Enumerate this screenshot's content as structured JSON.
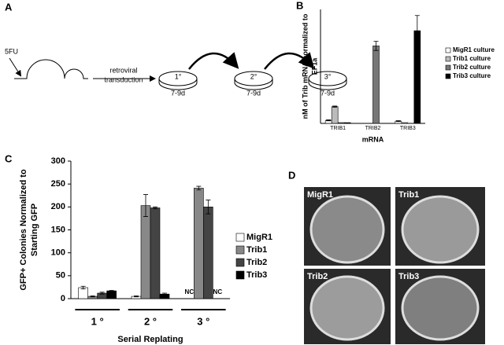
{
  "panel_labels": [
    "A",
    "B",
    "C",
    "D"
  ],
  "panel_a": {
    "start": "5FU",
    "transduction": [
      "retroviral",
      "transduction"
    ],
    "dishes": [
      {
        "label": "1°",
        "time": "7-9d"
      },
      {
        "label": "2°",
        "time": "7-9d"
      },
      {
        "label": "3°",
        "time": "7-9d"
      }
    ]
  },
  "panel_d": {
    "images": [
      "MigR1",
      "Trib1",
      "Trib2",
      "Trib3"
    ]
  },
  "chart_data": [
    {
      "type": "bar",
      "ylabel": [
        "nM of Trib mRNA normalized to",
        "EF1a"
      ],
      "xlabel": "mRNA",
      "categories": [
        "TRIB1",
        "TRIB2",
        "TRIB3"
      ],
      "ylim": [
        0,
        0.75
      ],
      "series": [
        {
          "name": "MigR1 culture",
          "color": "#ffffff",
          "values": [
            0.02,
            0,
            0.015
          ],
          "errors": [
            0.003,
            null,
            0.003
          ]
        },
        {
          "name": "Trib1 culture",
          "color": "#bbbbbb",
          "values": [
            0.11,
            0,
            0.005
          ],
          "errors": [
            0.004,
            null,
            null
          ]
        },
        {
          "name": "Trib2 culture",
          "color": "#777777",
          "values": [
            0.005,
            0.51,
            0
          ],
          "errors": [
            null,
            0.03,
            null
          ]
        },
        {
          "name": "Trib3 culture",
          "color": "#000000",
          "values": [
            0.005,
            0,
            0.61
          ],
          "errors": [
            null,
            null,
            0.1
          ]
        }
      ]
    },
    {
      "type": "bar",
      "ylabel": [
        "GFP+ Colonies Normalized to",
        "Starting GFP"
      ],
      "xlabel": "Serial Replating",
      "categories": [
        "1 °",
        "2 °",
        "3 °"
      ],
      "ylim": [
        0,
        300
      ],
      "yticks": [
        0,
        50,
        100,
        150,
        200,
        250,
        300
      ],
      "annotations": [
        "NC",
        "NC"
      ],
      "series": [
        {
          "name": "MigR1",
          "color": "#ffffff",
          "values": [
            24,
            5,
            null
          ],
          "errors": [
            3,
            1,
            null
          ]
        },
        {
          "name": "Trib1",
          "color": "#888888",
          "values": [
            5,
            203,
            241
          ],
          "errors": [
            1,
            24,
            4
          ]
        },
        {
          "name": "Trib2",
          "color": "#444444",
          "values": [
            12,
            198,
            200
          ],
          "errors": [
            2,
            2,
            15
          ]
        },
        {
          "name": "Trib3",
          "color": "#000000",
          "values": [
            17,
            10,
            null
          ],
          "errors": [
            1,
            2,
            null
          ]
        }
      ]
    }
  ]
}
